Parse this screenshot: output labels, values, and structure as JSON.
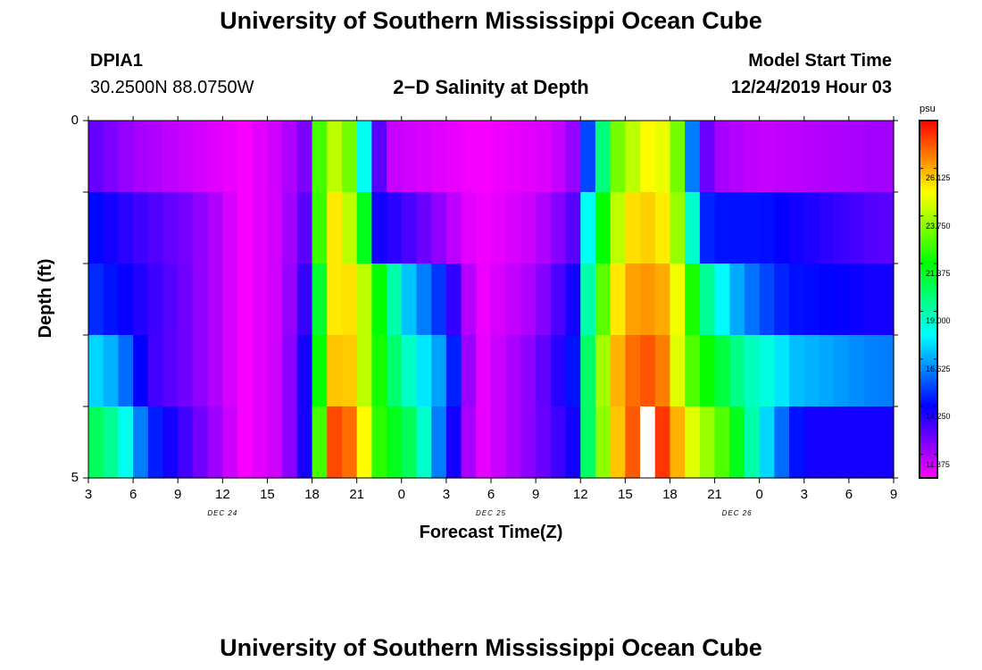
{
  "header": {
    "title": "University of Southern Mississippi Ocean Cube",
    "station_id": "DPIA1",
    "location": "30.2500N 88.0750W",
    "plot_title": "2−D Salinity at Depth",
    "model_start_label": "Model Start Time",
    "model_start_value": "12/24/2019 Hour 03"
  },
  "footer": {
    "title": "University of Southern Mississippi Ocean Cube"
  },
  "chart_data": {
    "type": "heatmap",
    "title": "2−D Salinity at Depth",
    "xlabel": "Forecast Time(Z)",
    "ylabel": "Depth (ft)",
    "x_tick_labels": [
      "3",
      "6",
      "9",
      "12",
      "15",
      "18",
      "21",
      "0",
      "3",
      "6",
      "9",
      "12",
      "15",
      "18",
      "21",
      "0",
      "3",
      "6",
      "9"
    ],
    "date_labels": [
      {
        "text": "DEC 24",
        "at_tick": 3
      },
      {
        "text": "DEC 25",
        "at_tick": 9
      },
      {
        "text": "DEC 26",
        "at_tick": 14.5
      }
    ],
    "y_tick_labels": [
      "0",
      "5"
    ],
    "ylim": [
      0,
      5
    ],
    "n_hours": 54,
    "rows": 5,
    "colorbar": {
      "unit": "psu",
      "min": 10.7,
      "max": 28.5,
      "tick_values": [
        11.875,
        14.25,
        16.625,
        19.0,
        21.375,
        23.75,
        26.125
      ],
      "tick_labels": [
        "11.875",
        "14.250",
        "16.625",
        "19.000",
        "21.375",
        "23.750",
        "26.125"
      ]
    },
    "profiles": [
      [
        [
          0,
          13
        ],
        [
          3,
          12
        ],
        [
          7,
          11.4
        ],
        [
          10.5,
          10.8
        ],
        [
          13,
          11.5
        ],
        [
          14.5,
          12.5
        ],
        [
          15,
          19
        ],
        [
          15.6,
          23
        ],
        [
          16,
          24.5
        ],
        [
          17.5,
          23
        ],
        [
          18.5,
          18
        ],
        [
          19,
          15
        ],
        [
          19.5,
          13
        ],
        [
          20.5,
          11.5
        ],
        [
          26,
          10.8
        ],
        [
          31,
          11.2
        ],
        [
          33,
          12.5
        ],
        [
          34,
          18
        ],
        [
          35.5,
          23
        ],
        [
          37,
          24.5
        ],
        [
          38,
          25.5
        ],
        [
          39.5,
          23
        ],
        [
          40.5,
          16
        ],
        [
          41,
          13.5
        ],
        [
          42,
          12
        ],
        [
          45,
          11.5
        ],
        [
          53,
          12
        ]
      ],
      [
        [
          0,
          14.5
        ],
        [
          3,
          13.5
        ],
        [
          7,
          12.5
        ],
        [
          10.5,
          10.8
        ],
        [
          13,
          11.5
        ],
        [
          14.5,
          13
        ],
        [
          15,
          18
        ],
        [
          15.6,
          23
        ],
        [
          16,
          25
        ],
        [
          17,
          25.5
        ],
        [
          18.5,
          21
        ],
        [
          19,
          15
        ],
        [
          19.5,
          14
        ],
        [
          21,
          13.5
        ],
        [
          23,
          12.5
        ],
        [
          26,
          10.8
        ],
        [
          30,
          11.5
        ],
        [
          32.5,
          13
        ],
        [
          33.5,
          18
        ],
        [
          35,
          23
        ],
        [
          36,
          25
        ],
        [
          37,
          25.8
        ],
        [
          39,
          25
        ],
        [
          40,
          22
        ],
        [
          41,
          15
        ],
        [
          42,
          14.5
        ],
        [
          45,
          14.5
        ],
        [
          53,
          13
        ]
      ],
      [
        [
          0,
          15
        ],
        [
          3,
          14
        ],
        [
          7,
          12.5
        ],
        [
          10.5,
          10.8
        ],
        [
          13,
          11.5
        ],
        [
          14.5,
          13.5
        ],
        [
          15,
          17
        ],
        [
          16,
          24.5
        ],
        [
          17,
          26
        ],
        [
          18.5,
          24
        ],
        [
          20,
          20
        ],
        [
          21.5,
          17
        ],
        [
          24,
          14.5
        ],
        [
          26,
          10.8
        ],
        [
          30,
          12
        ],
        [
          32.5,
          14
        ],
        [
          33.5,
          19
        ],
        [
          35,
          24.5
        ],
        [
          36,
          26
        ],
        [
          37,
          26.5
        ],
        [
          39,
          26
        ],
        [
          40,
          23.5
        ],
        [
          41,
          20
        ],
        [
          43,
          17
        ],
        [
          45,
          15.5
        ],
        [
          47,
          14.5
        ],
        [
          53,
          14
        ]
      ],
      [
        [
          0,
          17.5
        ],
        [
          2,
          16.5
        ],
        [
          4,
          13.5
        ],
        [
          7,
          12.5
        ],
        [
          10.5,
          10.8
        ],
        [
          13,
          11.5
        ],
        [
          14.5,
          14
        ],
        [
          15,
          18
        ],
        [
          16,
          25
        ],
        [
          17,
          26.5
        ],
        [
          18.5,
          24
        ],
        [
          20,
          20.5
        ],
        [
          22,
          18
        ],
        [
          24,
          16
        ],
        [
          26,
          10.8
        ],
        [
          30,
          12.5
        ],
        [
          32.5,
          14.5
        ],
        [
          33.5,
          20
        ],
        [
          35,
          25.5
        ],
        [
          36.5,
          27
        ],
        [
          38,
          27.5
        ],
        [
          39,
          26
        ],
        [
          40,
          23
        ],
        [
          42,
          21
        ],
        [
          44,
          19
        ],
        [
          46,
          18
        ],
        [
          47,
          17
        ],
        [
          53,
          16
        ]
      ],
      [
        [
          0,
          20.5
        ],
        [
          2,
          19
        ],
        [
          4,
          15
        ],
        [
          7,
          13
        ],
        [
          10.5,
          10.8
        ],
        [
          13,
          11.5
        ],
        [
          14.5,
          14
        ],
        [
          15,
          19
        ],
        [
          15.6,
          23
        ],
        [
          16,
          27
        ],
        [
          17,
          28
        ],
        [
          18.5,
          25
        ],
        [
          19.5,
          22
        ],
        [
          21,
          20.5
        ],
        [
          22,
          19.8
        ],
        [
          23.5,
          16
        ],
        [
          24.5,
          14
        ],
        [
          26,
          10.8
        ],
        [
          30,
          12.5
        ],
        [
          32.5,
          14
        ],
        [
          33.5,
          20
        ],
        [
          35,
          25
        ],
        [
          36,
          26.5
        ],
        [
          37,
          28
        ],
        [
          38,
          28.5
        ],
        [
          39,
          27
        ],
        [
          40,
          25
        ],
        [
          41,
          24
        ],
        [
          42,
          23
        ],
        [
          43,
          22
        ],
        [
          44,
          20
        ],
        [
          45,
          18
        ],
        [
          46,
          16.5
        ],
        [
          47,
          15
        ],
        [
          48,
          14
        ],
        [
          53,
          14
        ]
      ]
    ],
    "missing_cells": [
      {
        "row": 4,
        "hour": 37
      }
    ]
  }
}
